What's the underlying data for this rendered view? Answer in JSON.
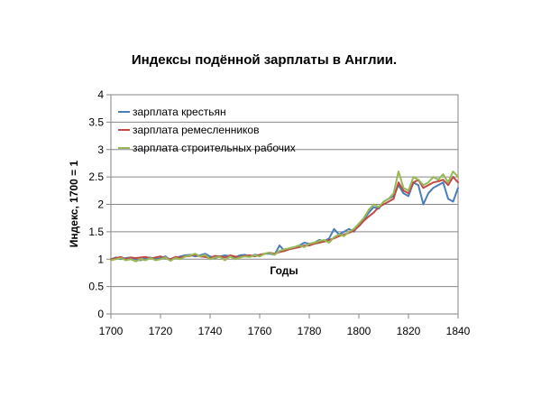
{
  "chart_data": {
    "type": "line",
    "title": "Индексы подённой зарплаты в Англии.",
    "xlabel": "Годы",
    "ylabel": "Индекс, 1700 = 1",
    "xlim": [
      1700,
      1840
    ],
    "ylim": [
      0,
      4
    ],
    "x_ticks": [
      "1700",
      "1720",
      "1740",
      "1760",
      "1780",
      "1800",
      "1820",
      "1840"
    ],
    "y_ticks": [
      "0",
      "0.5",
      "1",
      "1.5",
      "2",
      "2.5",
      "3",
      "3.5",
      "4"
    ],
    "grid": "horizontal",
    "legend_position": "top-left",
    "series": [
      {
        "name": "зарплата крестьян",
        "color": "#4a7ebb",
        "x": [
          1700,
          1702,
          1704,
          1706,
          1708,
          1710,
          1712,
          1714,
          1716,
          1718,
          1720,
          1722,
          1724,
          1726,
          1728,
          1730,
          1732,
          1734,
          1736,
          1738,
          1740,
          1742,
          1744,
          1746,
          1748,
          1750,
          1752,
          1754,
          1756,
          1758,
          1760,
          1762,
          1764,
          1766,
          1768,
          1770,
          1772,
          1774,
          1776,
          1778,
          1780,
          1782,
          1784,
          1786,
          1788,
          1790,
          1792,
          1794,
          1796,
          1798,
          1800,
          1802,
          1804,
          1806,
          1808,
          1810,
          1812,
          1814,
          1816,
          1818,
          1820,
          1822,
          1824,
          1826,
          1828,
          1830,
          1832,
          1834,
          1836,
          1838,
          1840
        ],
        "values": [
          1.0,
          1.03,
          1.0,
          1.02,
          1.03,
          1.0,
          0.98,
          1.02,
          1.03,
          1.0,
          1.02,
          1.05,
          0.98,
          1.02,
          1.05,
          1.07,
          1.08,
          1.05,
          1.07,
          1.1,
          1.05,
          1.02,
          1.05,
          1.07,
          1.05,
          1.03,
          1.07,
          1.08,
          1.05,
          1.08,
          1.07,
          1.1,
          1.1,
          1.08,
          1.25,
          1.15,
          1.2,
          1.22,
          1.25,
          1.3,
          1.28,
          1.3,
          1.35,
          1.33,
          1.38,
          1.55,
          1.45,
          1.5,
          1.55,
          1.5,
          1.65,
          1.72,
          1.85,
          1.95,
          1.92,
          2.05,
          2.1,
          2.15,
          2.35,
          2.2,
          2.15,
          2.4,
          2.35,
          2.0,
          2.2,
          2.3,
          2.35,
          2.4,
          2.1,
          2.05,
          2.3
        ]
      },
      {
        "name": "зарплата ремесленников",
        "color": "#be4b48",
        "x": [
          1700,
          1702,
          1704,
          1706,
          1708,
          1710,
          1712,
          1714,
          1716,
          1718,
          1720,
          1722,
          1724,
          1726,
          1728,
          1730,
          1732,
          1734,
          1736,
          1738,
          1740,
          1742,
          1744,
          1746,
          1748,
          1750,
          1752,
          1754,
          1756,
          1758,
          1760,
          1762,
          1764,
          1766,
          1768,
          1770,
          1772,
          1774,
          1776,
          1778,
          1780,
          1782,
          1784,
          1786,
          1788,
          1790,
          1792,
          1794,
          1796,
          1798,
          1800,
          1802,
          1804,
          1806,
          1808,
          1810,
          1812,
          1814,
          1816,
          1818,
          1820,
          1822,
          1824,
          1826,
          1828,
          1830,
          1832,
          1834,
          1836,
          1838,
          1840
        ],
        "values": [
          1.0,
          1.02,
          1.04,
          1.0,
          1.03,
          1.02,
          1.03,
          1.04,
          1.01,
          1.03,
          1.05,
          1.02,
          1.0,
          1.04,
          1.03,
          1.05,
          1.06,
          1.08,
          1.05,
          1.04,
          1.02,
          1.06,
          1.05,
          1.03,
          1.07,
          1.05,
          1.04,
          1.06,
          1.07,
          1.05,
          1.08,
          1.1,
          1.12,
          1.1,
          1.13,
          1.15,
          1.18,
          1.2,
          1.22,
          1.25,
          1.25,
          1.28,
          1.3,
          1.32,
          1.35,
          1.38,
          1.42,
          1.45,
          1.48,
          1.52,
          1.6,
          1.7,
          1.78,
          1.85,
          1.95,
          2.0,
          2.05,
          2.1,
          2.4,
          2.25,
          2.2,
          2.4,
          2.45,
          2.3,
          2.35,
          2.4,
          2.42,
          2.45,
          2.35,
          2.5,
          2.4
        ]
      },
      {
        "name": "зарплата строительных рабочих",
        "color": "#98b954",
        "x": [
          1700,
          1702,
          1704,
          1706,
          1708,
          1710,
          1712,
          1714,
          1716,
          1718,
          1720,
          1722,
          1724,
          1726,
          1728,
          1730,
          1732,
          1734,
          1736,
          1738,
          1740,
          1742,
          1744,
          1746,
          1748,
          1750,
          1752,
          1754,
          1756,
          1758,
          1760,
          1762,
          1764,
          1766,
          1768,
          1770,
          1772,
          1774,
          1776,
          1778,
          1780,
          1782,
          1784,
          1786,
          1788,
          1790,
          1792,
          1794,
          1796,
          1798,
          1800,
          1802,
          1804,
          1806,
          1808,
          1810,
          1812,
          1814,
          1816,
          1818,
          1820,
          1822,
          1824,
          1826,
          1828,
          1830,
          1832,
          1834,
          1836,
          1838,
          1840
        ],
        "values": [
          0.98,
          1.0,
          1.02,
          0.98,
          1.0,
          0.96,
          1.0,
          0.98,
          1.02,
          0.98,
          1.0,
          1.03,
          0.97,
          1.02,
          1.0,
          1.05,
          1.07,
          1.1,
          1.05,
          1.08,
          1.0,
          1.03,
          1.04,
          0.98,
          1.05,
          1.0,
          1.03,
          1.05,
          1.04,
          1.07,
          1.05,
          1.1,
          1.12,
          1.08,
          1.15,
          1.18,
          1.2,
          1.22,
          1.25,
          1.22,
          1.28,
          1.3,
          1.33,
          1.35,
          1.3,
          1.4,
          1.45,
          1.42,
          1.5,
          1.55,
          1.65,
          1.75,
          1.9,
          2.0,
          1.95,
          2.05,
          2.1,
          2.2,
          2.6,
          2.3,
          2.25,
          2.5,
          2.45,
          2.35,
          2.4,
          2.5,
          2.45,
          2.55,
          2.4,
          2.6,
          2.5
        ]
      }
    ]
  }
}
